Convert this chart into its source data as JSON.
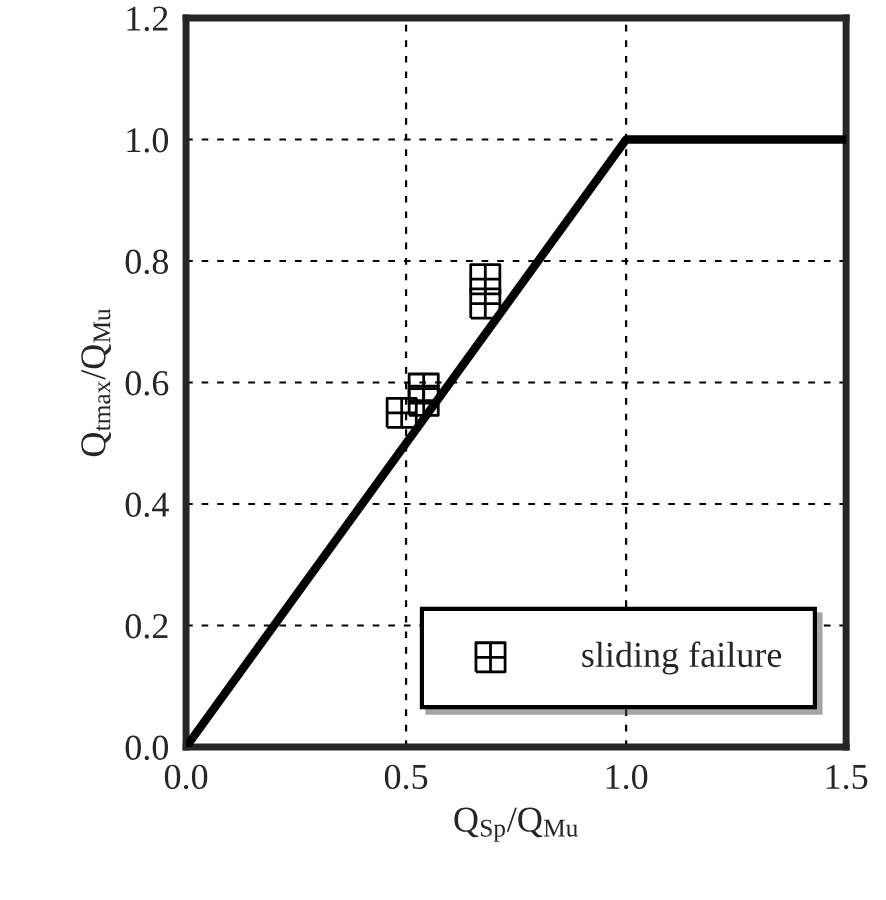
{
  "chart_data": {
    "type": "scatter",
    "xlabel": "Q$_{Sp}$/Q$_{Mu}$",
    "ylabel": "Q$_{tmax}$/Q$_{Mu}$",
    "xlim": [
      0,
      1.5
    ],
    "ylim": [
      0,
      1.2
    ],
    "xticks": [
      {
        "value": 0,
        "label": "0.0"
      },
      0.5,
      {
        "value": 1,
        "label": "1.0"
      },
      1.5
    ],
    "yticks": [
      {
        "value": 0,
        "label": "0.0"
      },
      0.2,
      0.4,
      0.6,
      0.8,
      {
        "value": 1,
        "label": "1.0"
      },
      1.2
    ],
    "grid": true,
    "legend": "bottom right",
    "series": [
      {
        "type": "line",
        "color": "#000000",
        "x": [
          0,
          1,
          1.5
        ],
        "values": [
          0,
          1,
          1
        ],
        "marker": "none",
        "line_style": "solid"
      },
      {
        "type": "scatter",
        "name": "sliding failure",
        "color": "#000000",
        "x": [
          0.49,
          0.54,
          0.54,
          0.68,
          0.68
        ],
        "values": [
          0.55,
          0.59,
          0.57,
          0.77,
          0.73
        ],
        "marker": "cross"
      }
    ]
  }
}
